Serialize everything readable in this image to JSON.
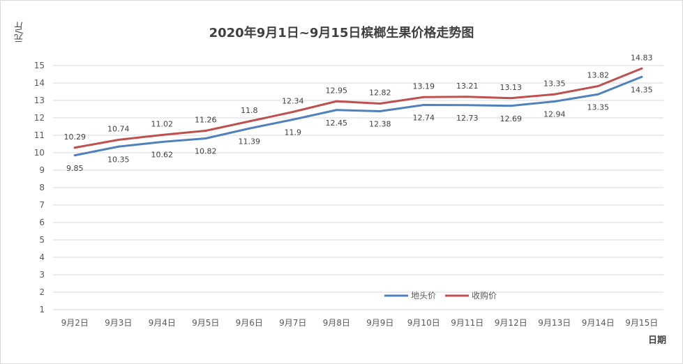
{
  "chart_data": {
    "type": "line",
    "title": "2020年9月1日~9月15日槟榔生果价格走势图",
    "ylabel": "元/斤",
    "xlabel": "日期",
    "ylim": [
      1,
      15
    ],
    "yticks": [
      1,
      2,
      3,
      4,
      5,
      6,
      7,
      8,
      9,
      10,
      11,
      12,
      13,
      14,
      15
    ],
    "grid": true,
    "legend": "bottom-right",
    "categories": [
      "9月2日",
      "9月3日",
      "9月4日",
      "9月5日",
      "9月6日",
      "9月7日",
      "9月8日",
      "9月9日",
      "9月10日",
      "9月11日",
      "9月12日",
      "9月13日",
      "9月14日",
      "9月15日"
    ],
    "series": [
      {
        "name": "地头价",
        "color": "#4f81bd",
        "values": [
          9.85,
          10.35,
          10.62,
          10.82,
          11.39,
          11.9,
          12.45,
          12.38,
          12.74,
          12.73,
          12.69,
          12.94,
          13.35,
          14.35
        ],
        "labels": [
          "9.85",
          "10.35",
          "10.62",
          "10.82",
          "11.39",
          "11.9",
          "12.45",
          "12.38",
          "12.74",
          "12.73",
          "12.69",
          "12.94",
          "13.35",
          "14.35"
        ]
      },
      {
        "name": "收购价",
        "color": "#c0504d",
        "values": [
          10.29,
          10.74,
          11.02,
          11.26,
          11.8,
          12.34,
          12.95,
          12.82,
          13.19,
          13.21,
          13.13,
          13.35,
          13.82,
          14.83
        ],
        "labels": [
          "10.29",
          "10.74",
          "11.02",
          "11.26",
          "11.8",
          "12.34",
          "12.95",
          "12.82",
          "13.19",
          "13.21",
          "13.13",
          "13.35",
          "13.82",
          "14.83"
        ]
      }
    ]
  }
}
